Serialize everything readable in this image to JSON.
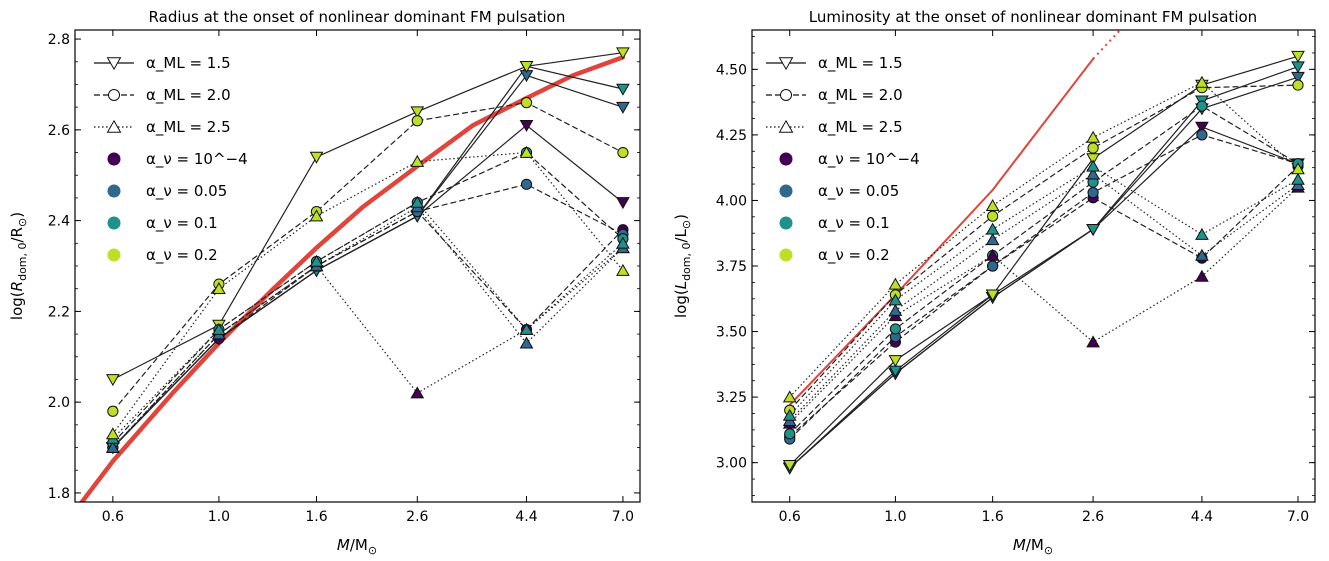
{
  "charts": [
    {
      "title": "Radius at the onset of nonlinear dominant FM pulsation",
      "xlabel": "M/M⊙",
      "ylabel": "log(R_dom,0/R⊙)"
    },
    {
      "title": "Luminosity at the onset of nonlinear dominant FM pulsation",
      "xlabel": "M/M⊙",
      "ylabel": "log(L_dom,0/L⊙)"
    }
  ],
  "legend": [
    {
      "label": "α_ML = 1.5",
      "kind": "line",
      "dash": "solid",
      "marker": "tri_down"
    },
    {
      "label": "α_ML = 2.0",
      "kind": "line",
      "dash": "dashed",
      "marker": "circle"
    },
    {
      "label": "α_ML = 2.5",
      "kind": "line",
      "dash": "dotted",
      "marker": "tri_up"
    },
    {
      "label": "α_ν = 10^−4",
      "kind": "dot",
      "color": "#440154"
    },
    {
      "label": "α_ν = 0.05",
      "kind": "dot",
      "color": "#31688e"
    },
    {
      "label": "α_ν = 0.1",
      "kind": "dot",
      "color": "#21918c"
    },
    {
      "label": "α_ν = 0.2",
      "kind": "dot",
      "color": "#bddf26"
    }
  ],
  "chart_data": [
    {
      "type": "line",
      "title": "Radius at the onset of nonlinear dominant FM pulsation",
      "xlabel": "M/M⊙",
      "ylabel": "log(R_dom,0/R⊙)",
      "x_scale": "log",
      "x_ticks": [
        0.6,
        1.0,
        1.6,
        2.6,
        4.4,
        7.0
      ],
      "x_tick_labels": [
        "0.6",
        "1.0",
        "1.6",
        "2.6",
        "4.4",
        "7.0"
      ],
      "ylim": [
        1.78,
        2.82
      ],
      "y_ticks": [
        1.8,
        2.0,
        2.2,
        2.4,
        2.6,
        2.8
      ],
      "y_tick_labels": [
        "1.8",
        "2.0",
        "2.2",
        "2.4",
        "2.6",
        "2.8"
      ],
      "legend_position": "upper-left",
      "x": [
        0.6,
        1.0,
        1.6,
        2.6,
        4.4,
        7.0
      ],
      "series": [
        {
          "alpha_ML": 1.5,
          "alpha_nu": "1e-4",
          "color": "#440154",
          "values": [
            1.9,
            2.14,
            2.29,
            2.41,
            2.61,
            2.44
          ]
        },
        {
          "alpha_ML": 1.5,
          "alpha_nu": "0.05",
          "color": "#31688e",
          "values": [
            1.9,
            2.14,
            2.29,
            2.41,
            2.72,
            2.65
          ]
        },
        {
          "alpha_ML": 1.5,
          "alpha_nu": "0.1",
          "color": "#21918c",
          "values": [
            1.9,
            2.14,
            2.29,
            2.41,
            2.74,
            2.69
          ]
        },
        {
          "alpha_ML": 1.5,
          "alpha_nu": "0.2",
          "color": "#bddf26",
          "values": [
            2.05,
            2.17,
            2.54,
            2.64,
            2.74,
            2.77
          ]
        },
        {
          "alpha_ML": 2.0,
          "alpha_nu": "1e-4",
          "color": "#440154",
          "values": [
            1.9,
            2.14,
            2.3,
            2.42,
            2.16,
            2.38
          ]
        },
        {
          "alpha_ML": 2.0,
          "alpha_nu": "0.05",
          "color": "#31688e",
          "values": [
            1.9,
            2.15,
            2.3,
            2.42,
            2.48,
            2.37
          ]
        },
        {
          "alpha_ML": 2.0,
          "alpha_nu": "0.1",
          "color": "#21918c",
          "values": [
            1.91,
            2.16,
            2.31,
            2.44,
            2.55,
            2.36
          ]
        },
        {
          "alpha_ML": 2.0,
          "alpha_nu": "0.2",
          "color": "#bddf26",
          "values": [
            1.98,
            2.26,
            2.42,
            2.62,
            2.66,
            2.55
          ]
        },
        {
          "alpha_ML": 2.5,
          "alpha_nu": "1e-4",
          "color": "#440154",
          "values": [
            1.9,
            2.15,
            2.3,
            2.02,
            2.16,
            2.34
          ]
        },
        {
          "alpha_ML": 2.5,
          "alpha_nu": "0.05",
          "color": "#31688e",
          "values": [
            1.9,
            2.15,
            2.3,
            2.43,
            2.13,
            2.34
          ]
        },
        {
          "alpha_ML": 2.5,
          "alpha_nu": "0.1",
          "color": "#21918c",
          "values": [
            1.92,
            2.16,
            2.31,
            2.44,
            2.16,
            2.35
          ]
        },
        {
          "alpha_ML": 2.5,
          "alpha_nu": "0.2",
          "color": "#bddf26",
          "values": [
            1.93,
            2.25,
            2.41,
            2.53,
            2.55,
            2.29
          ]
        }
      ],
      "fit_curve": {
        "color": "#e0443a",
        "points": [
          [
            0.5,
            1.76
          ],
          [
            0.6,
            1.87
          ],
          [
            0.8,
            2.02
          ],
          [
            1.0,
            2.13
          ],
          [
            1.3,
            2.25
          ],
          [
            1.6,
            2.34
          ],
          [
            2.0,
            2.43
          ],
          [
            2.6,
            2.52
          ],
          [
            3.4,
            2.61
          ],
          [
            4.4,
            2.67
          ],
          [
            5.5,
            2.72
          ],
          [
            7.0,
            2.76
          ]
        ]
      }
    },
    {
      "type": "line",
      "title": "Luminosity at the onset of nonlinear dominant FM pulsation",
      "xlabel": "M/M⊙",
      "ylabel": "log(L_dom,0/L⊙)",
      "x_scale": "log",
      "x_ticks": [
        0.6,
        1.0,
        1.6,
        2.6,
        4.4,
        7.0
      ],
      "x_tick_labels": [
        "0.6",
        "1.0",
        "1.6",
        "2.6",
        "4.4",
        "7.0"
      ],
      "ylim": [
        2.85,
        4.65
      ],
      "y_ticks": [
        3.0,
        3.25,
        3.5,
        3.75,
        4.0,
        4.25,
        4.5
      ],
      "y_tick_labels": [
        "3.00",
        "3.25",
        "3.50",
        "3.75",
        "4.00",
        "4.25",
        "4.50"
      ],
      "legend_position": "upper-left",
      "x": [
        0.6,
        1.0,
        1.6,
        2.6,
        4.4,
        7.0
      ],
      "series": [
        {
          "alpha_ML": 1.5,
          "alpha_nu": "1e-4",
          "color": "#440154",
          "values": [
            2.98,
            3.34,
            3.63,
            3.89,
            4.28,
            4.14
          ]
        },
        {
          "alpha_ML": 1.5,
          "alpha_nu": "0.05",
          "color": "#31688e",
          "values": [
            2.98,
            3.34,
            3.63,
            3.89,
            4.35,
            4.47
          ]
        },
        {
          "alpha_ML": 1.5,
          "alpha_nu": "0.1",
          "color": "#21918c",
          "values": [
            2.98,
            3.35,
            3.64,
            3.89,
            4.38,
            4.51
          ]
        },
        {
          "alpha_ML": 1.5,
          "alpha_nu": "0.2",
          "color": "#bddf26",
          "values": [
            2.99,
            3.39,
            3.64,
            4.16,
            4.44,
            4.55
          ]
        },
        {
          "alpha_ML": 2.0,
          "alpha_nu": "1e-4",
          "color": "#440154",
          "values": [
            3.1,
            3.46,
            3.75,
            4.01,
            3.78,
            4.13
          ]
        },
        {
          "alpha_ML": 2.0,
          "alpha_nu": "0.05",
          "color": "#31688e",
          "values": [
            3.09,
            3.48,
            3.75,
            4.03,
            4.25,
            4.14
          ]
        },
        {
          "alpha_ML": 2.0,
          "alpha_nu": "0.1",
          "color": "#21918c",
          "values": [
            3.11,
            3.51,
            3.79,
            4.07,
            4.36,
            4.14
          ]
        },
        {
          "alpha_ML": 2.0,
          "alpha_nu": "0.2",
          "color": "#bddf26",
          "values": [
            3.2,
            3.64,
            3.94,
            4.2,
            4.43,
            4.44
          ]
        },
        {
          "alpha_ML": 2.5,
          "alpha_nu": "1e-4",
          "color": "#440154",
          "values": [
            3.15,
            3.56,
            3.79,
            3.46,
            3.71,
            4.05
          ]
        },
        {
          "alpha_ML": 2.5,
          "alpha_nu": "0.05",
          "color": "#31688e",
          "values": [
            3.16,
            3.58,
            3.85,
            4.1,
            3.79,
            4.06
          ]
        },
        {
          "alpha_ML": 2.5,
          "alpha_nu": "0.1",
          "color": "#21918c",
          "values": [
            3.18,
            3.62,
            3.89,
            4.13,
            3.87,
            4.08
          ]
        },
        {
          "alpha_ML": 2.5,
          "alpha_nu": "0.2",
          "color": "#bddf26",
          "values": [
            3.25,
            3.68,
            3.98,
            4.24,
            4.45,
            4.12
          ]
        }
      ],
      "fit_curve": {
        "color": "#e0443a",
        "points": [
          [
            0.6,
            3.22
          ],
          [
            1.0,
            3.64
          ],
          [
            1.6,
            4.04
          ],
          [
            2.6,
            4.54
          ]
        ],
        "dotted_extension": [
          [
            2.6,
            4.54
          ],
          [
            3.5,
            4.79
          ]
        ]
      }
    }
  ]
}
